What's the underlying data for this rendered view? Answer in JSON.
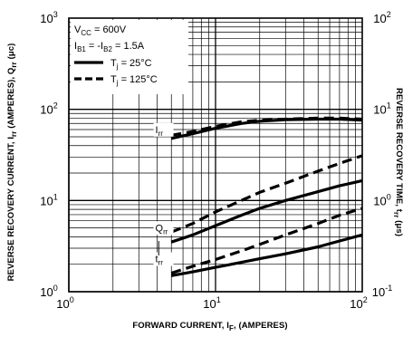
{
  "chart_data": {
    "type": "line",
    "xlabel": {
      "main": "FORWARD CURRENT, I",
      "sub": "F",
      "post": ", (AMPERES)"
    },
    "ylabel_left": {
      "parts": [
        {
          "t": "REVERSE RECOVERY CURRENT, I"
        },
        {
          "t": "rr",
          "sub": true
        },
        {
          "t": " (AMPERES), Q"
        },
        {
          "t": "rr",
          "sub": true
        },
        {
          "t": " (μc)"
        }
      ]
    },
    "ylabel_right": {
      "parts": [
        {
          "t": "REVERSE RECOVERY TIME, t"
        },
        {
          "t": "rr",
          "sub": true
        },
        {
          "t": " (μs)"
        }
      ]
    },
    "x_scale": "log",
    "y_scale": "log",
    "xlim": [
      1,
      100
    ],
    "ylim": [
      1,
      1000
    ],
    "y2lim": [
      0.1,
      100
    ],
    "x_ticks": [
      {
        "base": "10",
        "exp": "0"
      },
      {
        "base": "10",
        "exp": "1"
      },
      {
        "base": "10",
        "exp": "2"
      }
    ],
    "y_ticks_left": [
      {
        "base": "10",
        "exp": "0"
      },
      {
        "base": "10",
        "exp": "1"
      },
      {
        "base": "10",
        "exp": "2"
      },
      {
        "base": "10",
        "exp": "3"
      }
    ],
    "y_ticks_right": [
      {
        "base": "10",
        "exp": "-1"
      },
      {
        "base": "10",
        "exp": "0"
      },
      {
        "base": "10",
        "exp": "1"
      },
      {
        "base": "10",
        "exp": "2"
      }
    ],
    "grid": true,
    "legend": {
      "placement": "top-left",
      "conditions": [
        {
          "parts": [
            {
              "t": "V"
            },
            {
              "t": "CC",
              "sub": true
            },
            {
              "t": " = 600V"
            }
          ]
        },
        {
          "parts": [
            {
              "t": "I"
            },
            {
              "t": "B1",
              "sub": true
            },
            {
              "t": " = -I"
            },
            {
              "t": "B2",
              "sub": true
            },
            {
              "t": " = 1.5A"
            }
          ]
        }
      ],
      "entries": [
        {
          "style": "solid",
          "parts": [
            {
              "t": "T"
            },
            {
              "t": "j",
              "sub": true
            },
            {
              "t": " = 25°C"
            }
          ]
        },
        {
          "style": "dashed",
          "parts": [
            {
              "t": "T"
            },
            {
              "t": "j",
              "sub": true
            },
            {
              "t": " = 125°C"
            }
          ]
        }
      ]
    },
    "series": [
      {
        "curve": "Irr",
        "temp": "25C",
        "style": "solid",
        "x": [
          5,
          7,
          10,
          15,
          20,
          30,
          50,
          70,
          100
        ],
        "y": [
          48,
          54,
          62,
          70,
          74,
          77,
          78,
          78,
          76
        ]
      },
      {
        "curve": "Irr",
        "temp": "125C",
        "style": "dashed",
        "x": [
          5,
          7,
          10,
          15,
          20,
          30,
          50,
          70,
          100
        ],
        "y": [
          52,
          57,
          65,
          73,
          76,
          78,
          80,
          80,
          78
        ]
      },
      {
        "curve": "Qrr",
        "temp": "25C",
        "style": "solid",
        "x": [
          5,
          7,
          10,
          15,
          20,
          30,
          50,
          70,
          100
        ],
        "y": [
          3.5,
          4.2,
          5.3,
          6.9,
          8.2,
          10.0,
          12.5,
          14.5,
          16.5
        ]
      },
      {
        "curve": "Qrr",
        "temp": "125C",
        "style": "dashed",
        "x": [
          5,
          7,
          10,
          15,
          20,
          30,
          50,
          70,
          100
        ],
        "y": [
          4.5,
          5.6,
          7.5,
          10.0,
          12.3,
          15.5,
          21.0,
          25.5,
          31.0
        ]
      },
      {
        "curve": "trr",
        "temp": "25C",
        "style": "solid",
        "x": [
          5,
          7,
          10,
          15,
          20,
          30,
          50,
          70,
          100
        ],
        "y": [
          0.15,
          0.165,
          0.185,
          0.21,
          0.23,
          0.26,
          0.31,
          0.36,
          0.42
        ]
      },
      {
        "curve": "trr",
        "temp": "125C",
        "style": "dashed",
        "x": [
          5,
          7,
          10,
          15,
          20,
          30,
          50,
          70,
          100
        ],
        "y": [
          0.16,
          0.19,
          0.225,
          0.28,
          0.33,
          0.42,
          0.56,
          0.69,
          0.82
        ]
      }
    ],
    "annotations": [
      {
        "main": "I",
        "sub": "rr"
      },
      {
        "main": "Q",
        "sub": "rr"
      },
      {
        "main": "t",
        "sub": "rr"
      }
    ]
  }
}
